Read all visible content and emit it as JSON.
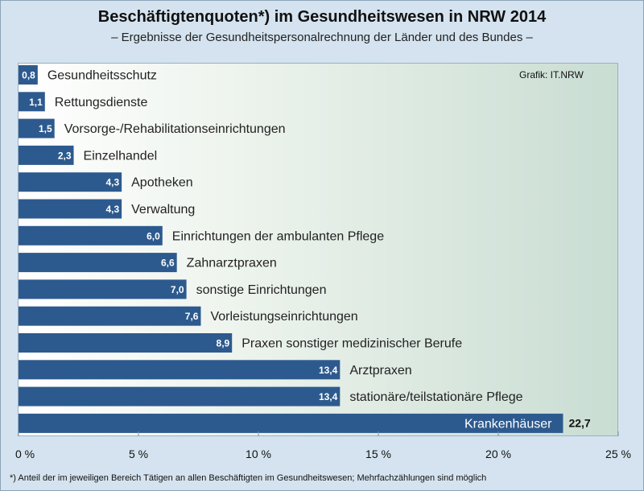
{
  "chart_data": {
    "type": "bar",
    "orientation": "horizontal",
    "title": "Beschäftigtenquoten*) im Gesundheitswesen in NRW 2014",
    "subtitle": "– Ergebnisse der Gesundheitspersonalrechnung  der Länder und des Bundes –",
    "credit": "Grafik: IT.NRW",
    "footnote": "*) Anteil der im jeweiligen Bereich Tätigen an allen Beschäftigten im Gesundheitswesen; Mehrfachzählungen  sind möglich",
    "categories": [
      "Gesundheitsschutz",
      "Rettungsdienste",
      "Vorsorge-/Rehabilitationseinrichtungen",
      "Einzelhandel",
      "Apotheken",
      "Verwaltung",
      "Einrichtungen der ambulanten  Pflege",
      "Zahnarztpraxen",
      "sonstige Einrichtungen",
      "Vorleistungseinrichtungen",
      "Praxen sonstiger medizinischer Berufe",
      "Arztpraxen",
      "stationäre/teilstationäre  Pflege",
      "Krankenhäuser"
    ],
    "values": [
      0.8,
      1.1,
      1.5,
      2.3,
      4.3,
      4.3,
      6.0,
      6.6,
      7.0,
      7.6,
      8.9,
      13.4,
      13.4,
      22.7
    ],
    "value_labels": [
      "0,8",
      "1,1",
      "1,5",
      "2,3",
      "4,3",
      "4,3",
      "6,0",
      "6,6",
      "7,0",
      "7,6",
      "8,9",
      "13,4",
      "13,4",
      "22,7"
    ],
    "xlim": [
      0,
      25
    ],
    "xticks": [
      0,
      5,
      10,
      15,
      20,
      25
    ],
    "xtick_labels": [
      "0 %",
      "5 %",
      "10 %",
      "15 %",
      "20 %",
      "25 %"
    ],
    "grid": false,
    "colors": {
      "bar": "#2d5a8e",
      "bar_label": "#ffffff",
      "background": "#d4e3ef"
    }
  }
}
